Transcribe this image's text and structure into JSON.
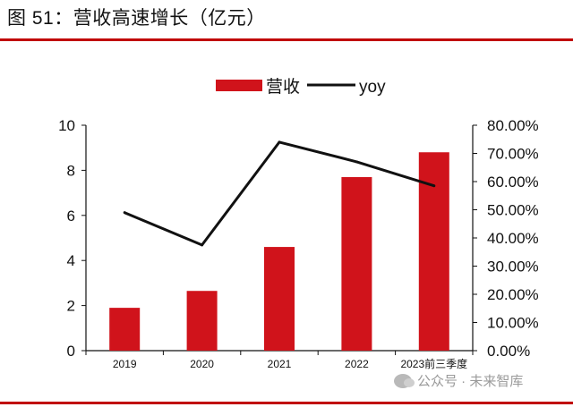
{
  "figure": {
    "title": "图 51：营收高速增长（亿元）"
  },
  "watermark": {
    "text": "公众号 · 未来智库"
  },
  "chart_data": {
    "type": "bar",
    "categories": [
      "2019",
      "2020",
      "2021",
      "2022",
      "2023前三季度"
    ],
    "series": [
      {
        "name": "营收",
        "kind": "bar",
        "axis": "left",
        "color": "#d0131b",
        "values": [
          1.9,
          2.65,
          4.6,
          7.7,
          8.8
        ]
      },
      {
        "name": "yoy",
        "kind": "line",
        "axis": "right",
        "color": "#111111",
        "values": [
          0.49,
          0.375,
          0.74,
          0.67,
          0.585
        ]
      }
    ],
    "y_left": {
      "min": 0,
      "max": 10,
      "ticks": [
        0,
        2,
        4,
        6,
        8,
        10
      ],
      "tick_labels": [
        "0",
        "2",
        "4",
        "6",
        "8",
        "10"
      ]
    },
    "y_right": {
      "min": 0,
      "max": 0.8,
      "ticks": [
        0,
        0.1,
        0.2,
        0.3,
        0.4,
        0.5,
        0.6,
        0.7,
        0.8
      ],
      "tick_labels": [
        "0.00%",
        "10.00%",
        "20.00%",
        "30.00%",
        "40.00%",
        "50.00%",
        "60.00%",
        "70.00%",
        "80.00%"
      ]
    },
    "legend_position": "top-center",
    "grid": false
  }
}
